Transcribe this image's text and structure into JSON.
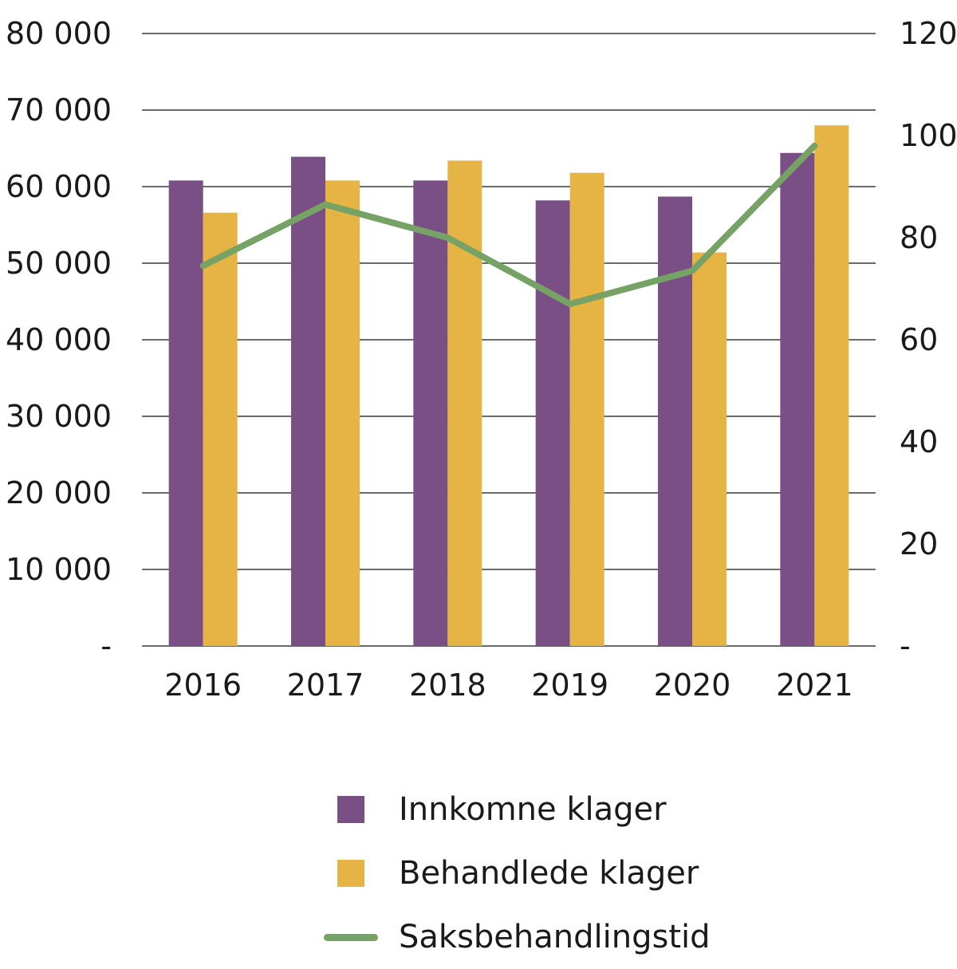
{
  "chart_data": {
    "type": "bar",
    "categories": [
      "2016",
      "2017",
      "2018",
      "2019",
      "2020",
      "2021"
    ],
    "series": [
      {
        "name": "Innkomne klager",
        "kind": "bar",
        "axis": "left",
        "color": "#7a4f86",
        "values": [
          60800,
          63900,
          60800,
          58200,
          58700,
          64400
        ]
      },
      {
        "name": "Behandlede klager",
        "kind": "bar",
        "axis": "left",
        "color": "#e6b445",
        "values": [
          56600,
          60800,
          63400,
          61800,
          51400,
          68000
        ]
      },
      {
        "name": "Saksbehandlingstid",
        "kind": "line",
        "axis": "right",
        "color": "#76a266",
        "values": [
          74.5,
          86.5,
          80,
          67,
          73.5,
          98
        ]
      }
    ],
    "y_left": {
      "min": 0,
      "max": 80000,
      "ticks": [
        0,
        10000,
        20000,
        30000,
        40000,
        50000,
        60000,
        70000,
        80000
      ],
      "tick_labels": [
        "-",
        "10 000",
        "20 000",
        "30 000",
        "40 000",
        "50 000",
        "60 000",
        "70 000",
        "80 000"
      ]
    },
    "y_right": {
      "min": 0,
      "max": 120,
      "ticks": [
        0,
        20,
        40,
        60,
        80,
        100,
        120
      ],
      "tick_labels": [
        "-",
        "20",
        "40",
        "60",
        "80",
        "100",
        "120"
      ]
    },
    "grid": true,
    "legend_position": "bottom-center"
  }
}
